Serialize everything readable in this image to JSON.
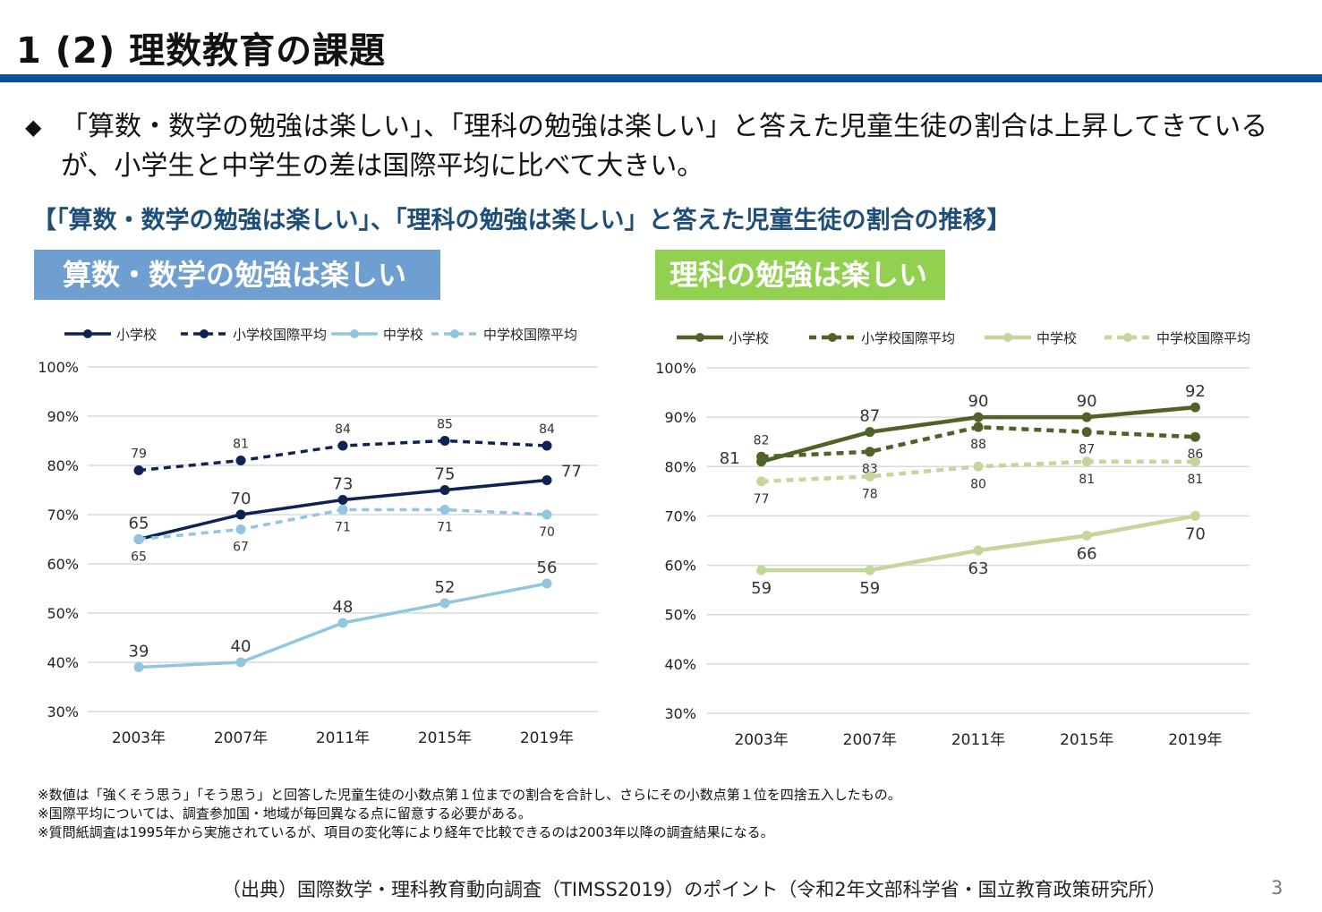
{
  "slide": {
    "title": "1 (2) 理数教育の課題",
    "bullet_mark": "◆",
    "bullet_text": "「算数・数学の勉強は楽しい」、「理科の勉強は楽しい」と答えた児童生徒の割合は上昇してきているが、小学生と中学生の差は国際平均に比べて大きい。",
    "subheading": "【「算数・数学の勉強は楽しい」、「理科の勉強は楽しい」と答えた児童生徒の割合の推移】",
    "notes": [
      "※数値は「強くそう思う」「そう思う」と回答した児童生徒の小数点第１位までの割合を合計し、さらにその小数点第１位を四捨五入したもの。",
      "※国際平均については、調査参加国・地域が毎回異なる点に留意する必要がある。",
      "※質問紙調査は1995年から実施されているが、項目の変化等により経年で比較できるのは2003年以降の調査結果になる。"
    ],
    "source": "（出典）国際数学・理科教育動向調査（TIMSS2019）のポイント（令和2年文部科学省・国立教育政策研究所）",
    "page_number": "3",
    "colors": {
      "title_rule": "#0b4f9c",
      "math_header": "#6f9fd0",
      "science_header": "#92d050"
    }
  },
  "chart_data": [
    {
      "type": "line",
      "title": "算数・数学の勉強は楽しい",
      "categories": [
        "2003年",
        "2007年",
        "2011年",
        "2015年",
        "2019年"
      ],
      "ylim": [
        30,
        100
      ],
      "yticks": [
        "30%",
        "40%",
        "50%",
        "60%",
        "70%",
        "80%",
        "90%",
        "100%"
      ],
      "grid": true,
      "legend_position": "top",
      "series": [
        {
          "name": "小学校",
          "values": [
            65,
            70,
            73,
            75,
            77
          ],
          "color": "#0e2352",
          "dashed": false,
          "label_size": "large",
          "label_pos": [
            "above",
            "above",
            "above",
            "above",
            "right"
          ]
        },
        {
          "name": "小学校国際平均",
          "values": [
            79,
            81,
            84,
            85,
            84
          ],
          "color": "#0e2352",
          "dashed": true,
          "label_size": "small",
          "label_pos": [
            "above",
            "above",
            "above",
            "above",
            "above"
          ]
        },
        {
          "name": "中学校",
          "values": [
            39,
            40,
            48,
            52,
            56
          ],
          "color": "#92c5de",
          "dashed": false,
          "label_size": "large",
          "label_pos": [
            "above",
            "above",
            "above",
            "above",
            "above"
          ]
        },
        {
          "name": "中学校国際平均",
          "values": [
            65,
            67,
            71,
            71,
            70
          ],
          "color": "#92c5de",
          "dashed": true,
          "label_size": "small",
          "label_pos": [
            "below",
            "below",
            "below",
            "below",
            "below"
          ]
        }
      ]
    },
    {
      "type": "line",
      "title": "理科の勉強は楽しい",
      "categories": [
        "2003年",
        "2007年",
        "2011年",
        "2015年",
        "2019年"
      ],
      "ylim": [
        30,
        100
      ],
      "yticks": [
        "30%",
        "40%",
        "50%",
        "60%",
        "70%",
        "80%",
        "90%",
        "100%"
      ],
      "grid": true,
      "legend_position": "top",
      "series": [
        {
          "name": "小学校",
          "values": [
            81,
            87,
            90,
            90,
            92
          ],
          "color": "#4f6228",
          "dashed": false,
          "label_size": "large",
          "label_pos": [
            "left",
            "above",
            "above",
            "above",
            "above"
          ]
        },
        {
          "name": "小学校国際平均",
          "values": [
            82,
            83,
            88,
            87,
            86
          ],
          "color": "#4f6228",
          "dashed": true,
          "label_size": "small",
          "label_pos": [
            "above",
            "below",
            "below",
            "below",
            "below"
          ]
        },
        {
          "name": "中学校",
          "values": [
            59,
            59,
            63,
            66,
            70
          ],
          "color": "#c3d69b",
          "dashed": false,
          "label_size": "large",
          "label_pos": [
            "below",
            "below",
            "below",
            "below",
            "below"
          ]
        },
        {
          "name": "中学校国際平均",
          "values": [
            77,
            78,
            80,
            81,
            81
          ],
          "color": "#c3d69b",
          "dashed": true,
          "label_size": "small",
          "label_pos": [
            "below",
            "below",
            "below",
            "below",
            "below"
          ]
        }
      ]
    }
  ]
}
